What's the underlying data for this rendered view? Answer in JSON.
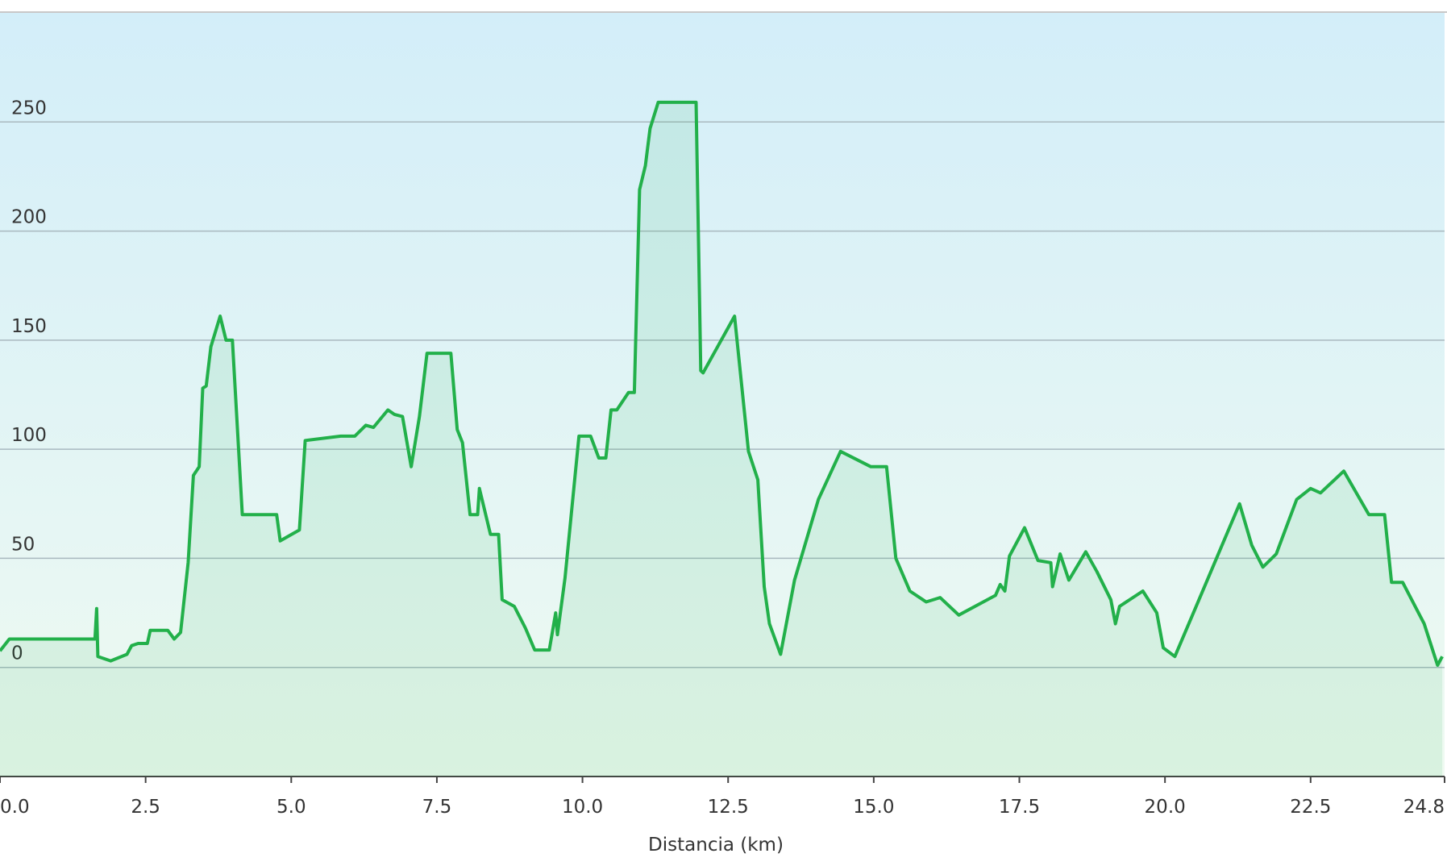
{
  "chart_data": {
    "type": "area",
    "x_label": "Distancia  (km)",
    "x": [
      0,
      0.16,
      1.63,
      1.66,
      1.68,
      1.9,
      2.18,
      2.26,
      2.37,
      2.53,
      2.58,
      2.88,
      2.99,
      3.1,
      3.23,
      3.32,
      3.42,
      3.48,
      3.54,
      3.62,
      3.78,
      3.88,
      3.99,
      4.16,
      4.75,
      4.81,
      5.14,
      5.24,
      5.85,
      6.09,
      6.28,
      6.41,
      6.66,
      6.77,
      6.91,
      7.06,
      7.2,
      7.33,
      7.74,
      7.85,
      7.94,
      8.07,
      8.2,
      8.23,
      8.42,
      8.56,
      8.62,
      8.83,
      9.02,
      9.18,
      9.43,
      9.54,
      9.57,
      9.7,
      9.94,
      10.14,
      10.28,
      10.4,
      10.49,
      10.59,
      10.79,
      10.89,
      10.98,
      11.08,
      11.16,
      11.3,
      11.95,
      12.03,
      12.07,
      12.61,
      12.85,
      13.01,
      13.12,
      13.21,
      13.4,
      13.64,
      14.05,
      14.43,
      14.95,
      15.22,
      15.38,
      15.62,
      15.9,
      16.14,
      16.46,
      17.09,
      17.17,
      17.25,
      17.33,
      17.59,
      17.82,
      18.04,
      18.07,
      18.2,
      18.35,
      18.64,
      18.83,
      19.07,
      19.15,
      19.22,
      19.62,
      19.86,
      19.97,
      20.17,
      20.52,
      21.28,
      21.49,
      21.68,
      21.91,
      22.26,
      22.5,
      22.67,
      23.07,
      23.5,
      23.77,
      23.89,
      24.08,
      24.45,
      24.68,
      24.76
    ],
    "series": [
      {
        "color": "#22b04a",
        "values": [
          7.6,
          13,
          13,
          27,
          5,
          3,
          6,
          10,
          11,
          11,
          17,
          17,
          13,
          16,
          48,
          88,
          92,
          128,
          129,
          147,
          161,
          150,
          150,
          70,
          70,
          58,
          63,
          104,
          106,
          106,
          111,
          110,
          118,
          116,
          115,
          92,
          115,
          144,
          144,
          109,
          103,
          70,
          70,
          82,
          61,
          61,
          31,
          28,
          18,
          8,
          8,
          25,
          15,
          41,
          106,
          106,
          96,
          96,
          118,
          118,
          126,
          126,
          219,
          230,
          247,
          259,
          259,
          136,
          135,
          161,
          99,
          86,
          37,
          20,
          6,
          40,
          77,
          99,
          92,
          92,
          50,
          35,
          30,
          32,
          24,
          33,
          38,
          35,
          51,
          64,
          49,
          48,
          37,
          52,
          40,
          53,
          44,
          31,
          20,
          28,
          35,
          25,
          9,
          5,
          27,
          75,
          56,
          46,
          52,
          77,
          82,
          80,
          90,
          70,
          70,
          39,
          39,
          20,
          1,
          5
        ]
      }
    ],
    "xlim": [
      0,
      24.8
    ],
    "ylim": [
      -50,
      300
    ],
    "xticks": [
      {
        "value": 0,
        "label": "0.0"
      },
      2.5,
      {
        "value": 5,
        "label": "5.0"
      },
      7.5,
      {
        "value": 10,
        "label": "10.0"
      },
      12.5,
      {
        "value": 15,
        "label": "15.0"
      },
      17.5,
      {
        "value": 20,
        "label": "20.0"
      },
      22.5,
      24.8
    ],
    "yticks": [
      0,
      50,
      100,
      150,
      200,
      250
    ],
    "grid": true
  }
}
